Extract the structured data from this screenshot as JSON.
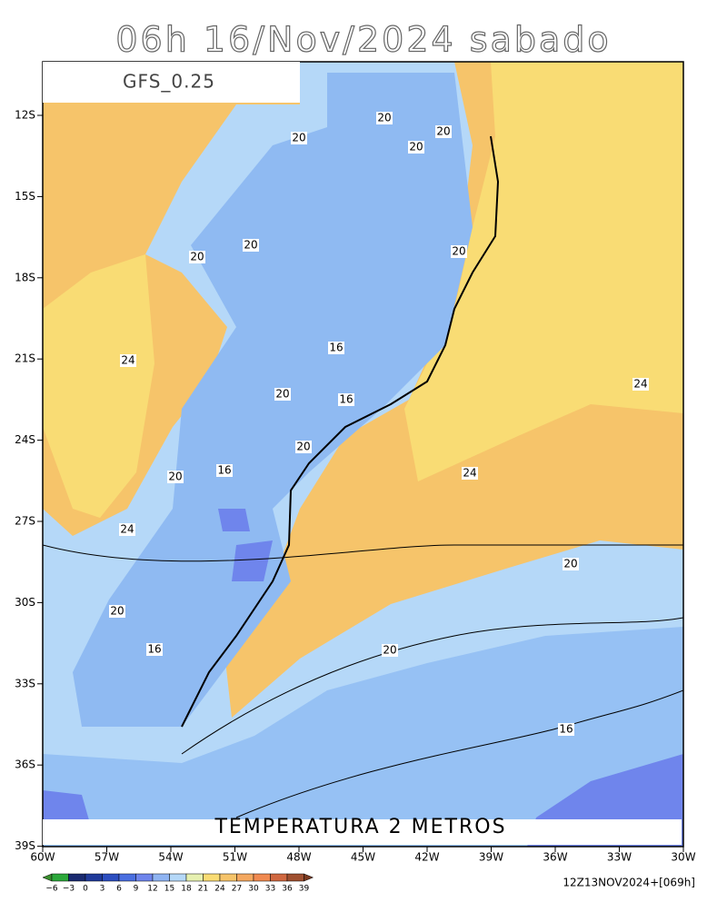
{
  "header": {
    "title": "06h 16/Nov/2024 sabado",
    "model": "GFS_0.25"
  },
  "map": {
    "field": "TEMPERATURA 2 METROS",
    "lat_labels": [
      "12S",
      "15S",
      "18S",
      "21S",
      "24S",
      "27S",
      "30S",
      "33S",
      "36S",
      "39S"
    ],
    "lon_labels": [
      "60W",
      "57W",
      "54W",
      "51W",
      "48W",
      "45W",
      "42W",
      "39W",
      "36W",
      "33W",
      "30W"
    ],
    "contour_labels": [
      "20",
      "20",
      "20",
      "20",
      "20",
      "20",
      "20",
      "24",
      "16",
      "16",
      "20",
      "24",
      "20",
      "16",
      "20",
      "24",
      "24",
      "20",
      "20",
      "20",
      "16",
      "16"
    ]
  },
  "colorbar": {
    "labels": [
      "−6",
      "−3",
      "0",
      "3",
      "6",
      "9",
      "12",
      "15",
      "18",
      "21",
      "24",
      "27",
      "30",
      "33",
      "36",
      "39"
    ]
  },
  "footer": {
    "run": "12Z13NOV2024+[069h]"
  }
}
